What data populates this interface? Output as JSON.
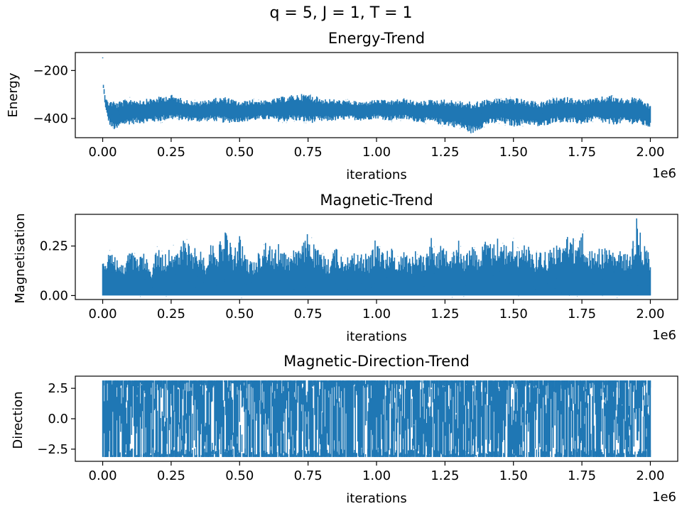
{
  "figure": {
    "suptitle": "q = 5, J = 1, T = 1",
    "series_color": "#1f77b4"
  },
  "chart_data": [
    {
      "type": "scatter",
      "title": "Energy-Trend",
      "xlabel": "iterations",
      "ylabel": "Energy",
      "x_offset_text": "1e6",
      "xlim": [
        -0.1,
        2.1
      ],
      "ylim": [
        -480,
        -125
      ],
      "xticks": [
        0.0,
        0.25,
        0.5,
        0.75,
        1.0,
        1.25,
        1.5,
        1.75,
        2.0
      ],
      "xtick_labels": [
        "0.00",
        "0.25",
        "0.50",
        "0.75",
        "1.00",
        "1.25",
        "1.50",
        "1.75",
        "2.00"
      ],
      "yticks": [
        -200,
        -400
      ],
      "ytick_labels": [
        "−200",
        "−400"
      ],
      "grid": false,
      "series": [
        {
          "x": [
            0.0,
            0.002,
            0.005,
            0.01,
            0.02,
            0.03,
            0.05,
            0.07,
            0.1,
            0.15,
            0.2,
            0.25,
            0.3,
            0.35,
            0.4,
            0.45,
            0.5,
            0.55,
            0.6,
            0.65,
            0.7,
            0.75,
            0.8,
            0.85,
            0.9,
            0.95,
            1.0,
            1.05,
            1.1,
            1.15,
            1.2,
            1.25,
            1.3,
            1.35,
            1.4,
            1.45,
            1.5,
            1.55,
            1.6,
            1.65,
            1.7,
            1.75,
            1.8,
            1.85,
            1.9,
            1.95,
            2.0
          ],
          "y_low": [
            -150,
            -270,
            -300,
            -360,
            -410,
            -440,
            -455,
            -430,
            -425,
            -420,
            -415,
            -405,
            -410,
            -415,
            -410,
            -420,
            -415,
            -410,
            -405,
            -415,
            -410,
            -420,
            -415,
            -410,
            -405,
            -410,
            -400,
            -410,
            -405,
            -415,
            -420,
            -430,
            -440,
            -465,
            -430,
            -420,
            -435,
            -425,
            -440,
            -415,
            -420,
            -425,
            -410,
            -430,
            -420,
            -425,
            -440
          ],
          "y_high": [
            -145,
            -250,
            -270,
            -310,
            -330,
            -320,
            -330,
            -325,
            -315,
            -320,
            -310,
            -300,
            -320,
            -330,
            -315,
            -310,
            -330,
            -320,
            -325,
            -310,
            -300,
            -295,
            -315,
            -320,
            -325,
            -330,
            -320,
            -325,
            -315,
            -330,
            -320,
            -320,
            -325,
            -330,
            -320,
            -315,
            -310,
            -325,
            -330,
            -315,
            -310,
            -320,
            -315,
            -300,
            -315,
            -310,
            -340
          ]
        }
      ]
    },
    {
      "type": "scatter",
      "title": "Magnetic-Trend",
      "xlabel": "iterations",
      "ylabel": "Magnetisation",
      "x_offset_text": "1e6",
      "xlim": [
        -0.1,
        2.1
      ],
      "ylim": [
        -0.02,
        0.41
      ],
      "xticks": [
        0.0,
        0.25,
        0.5,
        0.75,
        1.0,
        1.25,
        1.5,
        1.75,
        2.0
      ],
      "xtick_labels": [
        "0.00",
        "0.25",
        "0.50",
        "0.75",
        "1.00",
        "1.25",
        "1.50",
        "1.75",
        "2.00"
      ],
      "yticks": [
        0.25,
        0.0
      ],
      "ytick_labels": [
        "0.25",
        "0.00"
      ],
      "grid": false,
      "series": [
        {
          "x": [
            0.0,
            0.025,
            0.05,
            0.075,
            0.1,
            0.125,
            0.15,
            0.175,
            0.2,
            0.225,
            0.25,
            0.275,
            0.3,
            0.325,
            0.35,
            0.375,
            0.4,
            0.425,
            0.45,
            0.475,
            0.5,
            0.525,
            0.55,
            0.575,
            0.6,
            0.625,
            0.65,
            0.675,
            0.7,
            0.725,
            0.75,
            0.775,
            0.8,
            0.825,
            0.85,
            0.875,
            0.9,
            0.925,
            0.95,
            0.975,
            1.0,
            1.025,
            1.05,
            1.075,
            1.1,
            1.125,
            1.15,
            1.175,
            1.2,
            1.225,
            1.25,
            1.275,
            1.3,
            1.325,
            1.35,
            1.375,
            1.4,
            1.425,
            1.45,
            1.475,
            1.5,
            1.525,
            1.55,
            1.575,
            1.6,
            1.625,
            1.65,
            1.675,
            1.7,
            1.725,
            1.75,
            1.775,
            1.8,
            1.825,
            1.85,
            1.875,
            1.9,
            1.925,
            1.95,
            1.975,
            2.0
          ],
          "y_high": [
            0.16,
            0.27,
            0.2,
            0.15,
            0.24,
            0.19,
            0.22,
            0.14,
            0.25,
            0.2,
            0.27,
            0.22,
            0.3,
            0.23,
            0.25,
            0.19,
            0.28,
            0.26,
            0.35,
            0.22,
            0.3,
            0.2,
            0.17,
            0.24,
            0.29,
            0.22,
            0.28,
            0.2,
            0.27,
            0.24,
            0.33,
            0.25,
            0.21,
            0.19,
            0.25,
            0.2,
            0.24,
            0.21,
            0.22,
            0.2,
            0.3,
            0.22,
            0.26,
            0.19,
            0.24,
            0.19,
            0.25,
            0.2,
            0.3,
            0.24,
            0.27,
            0.25,
            0.28,
            0.21,
            0.26,
            0.22,
            0.29,
            0.26,
            0.32,
            0.25,
            0.29,
            0.22,
            0.3,
            0.21,
            0.24,
            0.22,
            0.28,
            0.24,
            0.35,
            0.27,
            0.33,
            0.22,
            0.25,
            0.24,
            0.25,
            0.22,
            0.23,
            0.2,
            0.39,
            0.26,
            0.22
          ],
          "y_low": [
            0.0,
            0.0,
            0.0,
            0.0,
            0.0,
            0.0,
            0.0,
            0.0,
            0.0,
            0.0,
            0.0,
            0.0,
            0.0,
            0.0,
            0.0,
            0.0,
            0.0,
            0.0,
            0.0,
            0.0,
            0.0,
            0.0,
            0.0,
            0.0,
            0.0,
            0.0,
            0.0,
            0.0,
            0.0,
            0.0,
            0.0,
            0.0,
            0.0,
            0.0,
            0.0,
            0.0,
            0.0,
            0.0,
            0.0,
            0.0,
            0.0,
            0.0,
            0.0,
            0.0,
            0.0,
            0.0,
            0.0,
            0.0,
            0.0,
            0.0,
            0.0,
            0.0,
            0.0,
            0.0,
            0.0,
            0.0,
            0.0,
            0.0,
            0.0,
            0.0,
            0.0,
            0.0,
            0.0,
            0.0,
            0.0,
            0.0,
            0.0,
            0.0,
            0.0,
            0.0,
            0.0,
            0.0,
            0.0,
            0.0,
            0.0,
            0.0,
            0.0,
            0.0,
            0.0,
            0.0,
            0.0
          ]
        }
      ]
    },
    {
      "type": "scatter",
      "title": "Magnetic-Direction-Trend",
      "xlabel": "iterations",
      "ylabel": "Direction",
      "x_offset_text": "1e6",
      "xlim": [
        -0.1,
        2.1
      ],
      "ylim": [
        -3.5,
        3.5
      ],
      "xticks": [
        0.0,
        0.25,
        0.5,
        0.75,
        1.0,
        1.25,
        1.5,
        1.75,
        2.0
      ],
      "xtick_labels": [
        "0.00",
        "0.25",
        "0.50",
        "0.75",
        "1.00",
        "1.25",
        "1.50",
        "1.75",
        "2.00"
      ],
      "yticks": [
        2.5,
        0.0,
        -2.5
      ],
      "ytick_labels": [
        "2.5",
        "0.0",
        "−2.5"
      ],
      "grid": false,
      "series": [
        {
          "x_start": 0.0,
          "x_end": 2.0,
          "y_min": -3.14,
          "y_max": 3.14
        }
      ]
    }
  ]
}
